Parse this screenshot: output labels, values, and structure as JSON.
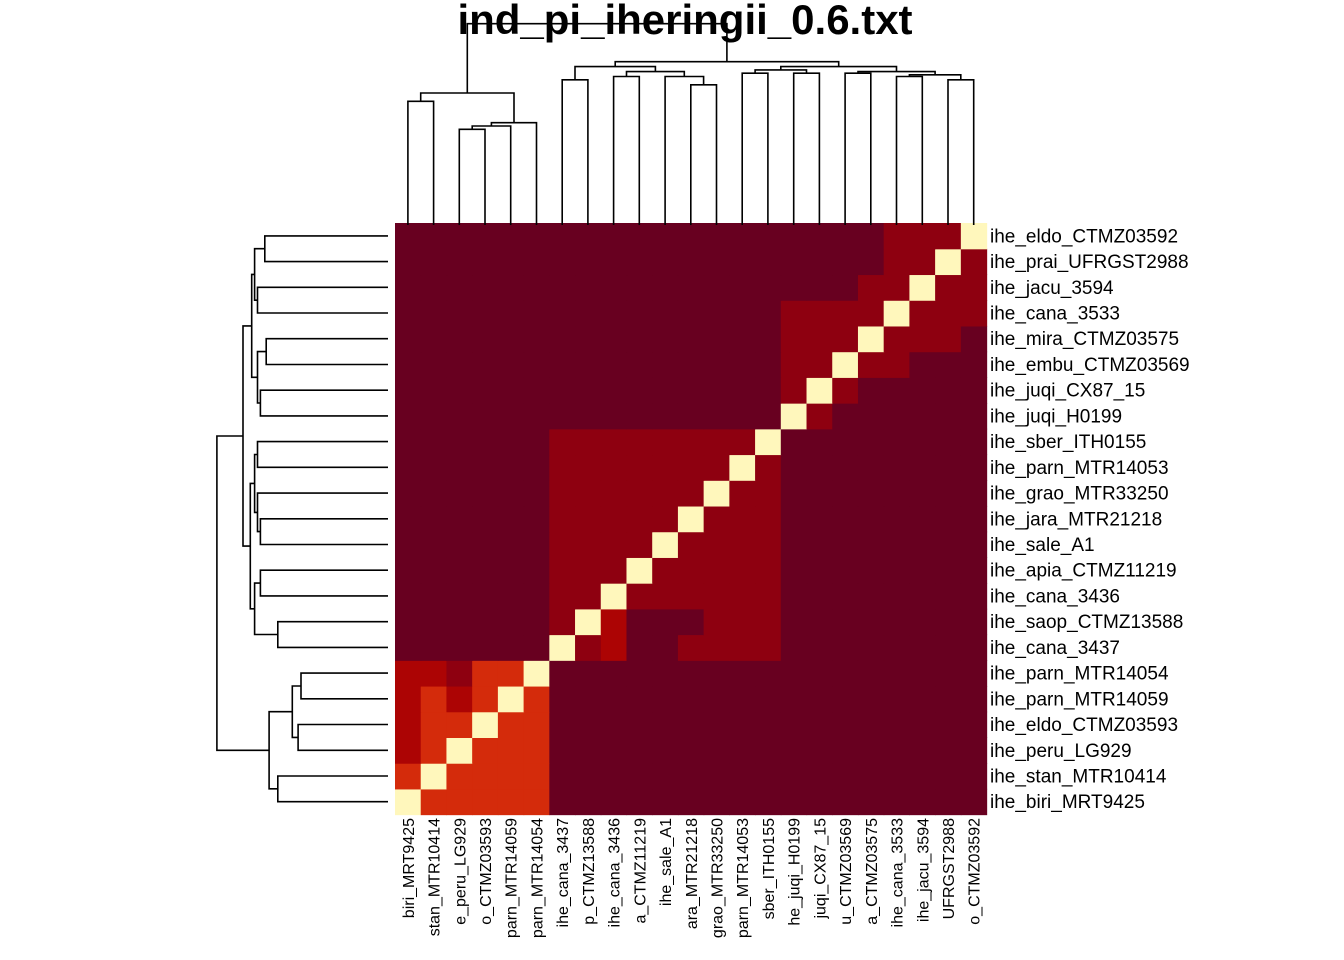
{
  "chart_data": {
    "type": "heatmap",
    "title": "ind_pi_iheringii_0.6.txt",
    "row_labels_top_to_bottom": [
      "ihe_eldo_CTMZ03592",
      "ihe_prai_UFRGST2988",
      "ihe_jacu_3594",
      "ihe_cana_3533",
      "ihe_mira_CTMZ03575",
      "ihe_embu_CTMZ03569",
      "ihe_juqi_CX87_15",
      "ihe_juqi_H0199",
      "ihe_sber_ITH0155",
      "ihe_parn_MTR14053",
      "ihe_grao_MTR33250",
      "ihe_jara_MTR21218",
      "ihe_sale_A1",
      "ihe_apia_CTMZ11219",
      "ihe_cana_3436",
      "ihe_saop_CTMZ13588",
      "ihe_cana_3437",
      "ihe_parn_MTR14054",
      "ihe_parn_MTR14059",
      "ihe_eldo_CTMZ03593",
      "ihe_peru_LG929",
      "ihe_stan_MTR10414",
      "ihe_biri_MRT9425"
    ],
    "col_labels_left_to_right": [
      "biri_MRT9425",
      "stan_MTR10414",
      "e_peru_LG929",
      "o_CTMZ03593",
      "parn_MTR14059",
      "parn_MTR14054",
      "ihe_cana_3437",
      "p_CTMZ13588",
      "ihe_cana_3436",
      "a_CTMZ11219",
      "ihe_sale_A1",
      "ara_MTR21218",
      "grao_MTR33250",
      "parn_MTR14053",
      "sber_ITH0155",
      "he_juqi_H0199",
      "juqi_CX87_15",
      "u_CTMZ03569",
      "a_CTMZ03575",
      "ihe_cana_3533",
      "ihe_jacu_3594",
      "UFRGST2988",
      "o_CTMZ03592"
    ],
    "color_levels": [
      "#fff7bc",
      "#d42b0b",
      "#ac0404",
      "#8e0010",
      "#680020"
    ],
    "matrix_levels_bottom_row_first": [
      [
        0,
        1,
        1,
        1,
        1,
        1,
        4,
        4,
        4,
        4,
        4,
        4,
        4,
        4,
        4,
        4,
        4,
        4,
        4,
        4,
        4,
        4,
        4
      ],
      [
        1,
        0,
        1,
        1,
        1,
        1,
        4,
        4,
        4,
        4,
        4,
        4,
        4,
        4,
        4,
        4,
        4,
        4,
        4,
        4,
        4,
        4,
        4
      ],
      [
        2,
        1,
        0,
        1,
        1,
        1,
        4,
        4,
        4,
        4,
        4,
        4,
        4,
        4,
        4,
        4,
        4,
        4,
        4,
        4,
        4,
        4,
        4
      ],
      [
        2,
        1,
        1,
        0,
        1,
        1,
        4,
        4,
        4,
        4,
        4,
        4,
        4,
        4,
        4,
        4,
        4,
        4,
        4,
        4,
        4,
        4,
        4
      ],
      [
        2,
        1,
        2,
        1,
        0,
        1,
        4,
        4,
        4,
        4,
        4,
        4,
        4,
        4,
        4,
        4,
        4,
        4,
        4,
        4,
        4,
        4,
        4
      ],
      [
        2,
        2,
        3,
        1,
        1,
        0,
        4,
        4,
        4,
        4,
        4,
        4,
        4,
        4,
        4,
        4,
        4,
        4,
        4,
        4,
        4,
        4,
        4
      ],
      [
        4,
        4,
        4,
        4,
        4,
        4,
        0,
        3,
        2,
        4,
        4,
        3,
        3,
        3,
        3,
        4,
        4,
        4,
        4,
        4,
        4,
        4,
        4
      ],
      [
        4,
        4,
        4,
        4,
        4,
        4,
        3,
        0,
        2,
        4,
        4,
        4,
        3,
        3,
        3,
        4,
        4,
        4,
        4,
        4,
        4,
        4,
        4
      ],
      [
        4,
        4,
        4,
        4,
        4,
        4,
        3,
        3,
        0,
        3,
        3,
        3,
        3,
        3,
        3,
        4,
        4,
        4,
        4,
        4,
        4,
        4,
        4
      ],
      [
        4,
        4,
        4,
        4,
        4,
        4,
        3,
        3,
        3,
        0,
        3,
        3,
        3,
        3,
        3,
        4,
        4,
        4,
        4,
        4,
        4,
        4,
        4
      ],
      [
        4,
        4,
        4,
        4,
        4,
        4,
        3,
        3,
        3,
        3,
        0,
        3,
        3,
        3,
        3,
        4,
        4,
        4,
        4,
        4,
        4,
        4,
        4
      ],
      [
        4,
        4,
        4,
        4,
        4,
        4,
        3,
        3,
        3,
        3,
        3,
        0,
        3,
        3,
        3,
        4,
        4,
        4,
        4,
        4,
        4,
        4,
        4
      ],
      [
        4,
        4,
        4,
        4,
        4,
        4,
        3,
        3,
        3,
        3,
        3,
        3,
        0,
        3,
        3,
        4,
        4,
        4,
        4,
        4,
        4,
        4,
        4
      ],
      [
        4,
        4,
        4,
        4,
        4,
        4,
        3,
        3,
        3,
        3,
        3,
        3,
        3,
        0,
        3,
        4,
        4,
        4,
        4,
        4,
        4,
        4,
        4
      ],
      [
        4,
        4,
        4,
        4,
        4,
        4,
        3,
        3,
        3,
        3,
        3,
        3,
        3,
        3,
        0,
        4,
        4,
        4,
        4,
        4,
        4,
        4,
        4
      ],
      [
        4,
        4,
        4,
        4,
        4,
        4,
        4,
        4,
        4,
        4,
        4,
        4,
        4,
        4,
        4,
        0,
        3,
        4,
        4,
        4,
        4,
        4,
        4
      ],
      [
        4,
        4,
        4,
        4,
        4,
        4,
        4,
        4,
        4,
        4,
        4,
        4,
        4,
        4,
        4,
        3,
        0,
        3,
        4,
        4,
        4,
        4,
        4
      ],
      [
        4,
        4,
        4,
        4,
        4,
        4,
        4,
        4,
        4,
        4,
        4,
        4,
        4,
        4,
        4,
        3,
        3,
        0,
        3,
        3,
        4,
        4,
        4
      ],
      [
        4,
        4,
        4,
        4,
        4,
        4,
        4,
        4,
        4,
        4,
        4,
        4,
        4,
        4,
        4,
        3,
        3,
        3,
        0,
        3,
        3,
        3,
        4
      ],
      [
        4,
        4,
        4,
        4,
        4,
        4,
        4,
        4,
        4,
        4,
        4,
        4,
        4,
        4,
        4,
        3,
        3,
        3,
        3,
        0,
        3,
        3,
        3
      ],
      [
        4,
        4,
        4,
        4,
        4,
        4,
        4,
        4,
        4,
        4,
        4,
        4,
        4,
        4,
        4,
        4,
        4,
        4,
        3,
        3,
        0,
        3,
        3
      ],
      [
        4,
        4,
        4,
        4,
        4,
        4,
        4,
        4,
        4,
        4,
        4,
        4,
        4,
        4,
        4,
        4,
        4,
        4,
        4,
        3,
        3,
        0,
        3
      ],
      [
        4,
        4,
        4,
        4,
        4,
        4,
        4,
        4,
        4,
        4,
        4,
        4,
        4,
        4,
        4,
        4,
        4,
        4,
        4,
        3,
        3,
        3,
        0
      ]
    ],
    "dendrogram": "hierarchical clustering on rows (left) and columns (top); two main clusters: first 6 samples vs remaining 17",
    "legend": "none",
    "grid": false
  }
}
